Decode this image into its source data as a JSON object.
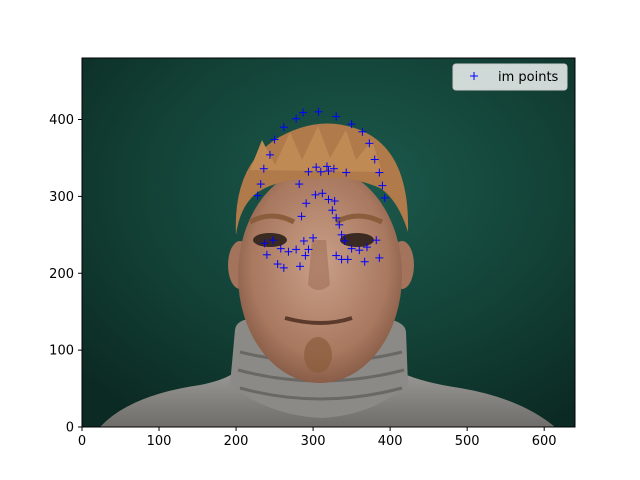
{
  "chart_data": {
    "type": "scatter",
    "title": "",
    "xlabel": "",
    "ylabel": "",
    "xlim": [
      0,
      640
    ],
    "ylim": [
      480,
      0
    ],
    "y_inverted": true,
    "xticks": [
      0,
      100,
      200,
      300,
      400,
      500,
      600
    ],
    "yticks": [
      0,
      100,
      200,
      300,
      400
    ],
    "grid": false,
    "legend_placement": "top-right",
    "background": "photo-face",
    "series": [
      {
        "name": "im points",
        "marker": "+",
        "color": "#0000ff",
        "x": [
          237,
          240,
          254,
          262,
          283,
          290,
          294,
          330,
          337,
          345,
          367,
          386,
          248,
          258,
          268,
          278,
          288,
          300,
          341,
          350,
          360,
          370,
          382,
          285,
          291,
          303,
          312,
          320,
          328,
          325,
          330,
          334,
          337,
          304,
          310,
          320,
          228,
          232,
          236,
          244,
          250,
          262,
          278,
          287,
          307,
          330,
          350,
          364,
          373,
          380,
          386,
          390,
          393,
          282,
          294,
          318,
          327,
          343
        ],
        "y": [
          239,
          224,
          212,
          207,
          209,
          223,
          231,
          223,
          218,
          218,
          215,
          220,
          243,
          232,
          228,
          231,
          242,
          246,
          242,
          232,
          230,
          234,
          243,
          274,
          291,
          302,
          304,
          296,
          294,
          282,
          272,
          263,
          250,
          338,
          332,
          333,
          301,
          316,
          336,
          354,
          374,
          390,
          401,
          409,
          410,
          404,
          394,
          384,
          369,
          348,
          331,
          314,
          298,
          316,
          332,
          339,
          336,
          331
        ]
      }
    ]
  }
}
